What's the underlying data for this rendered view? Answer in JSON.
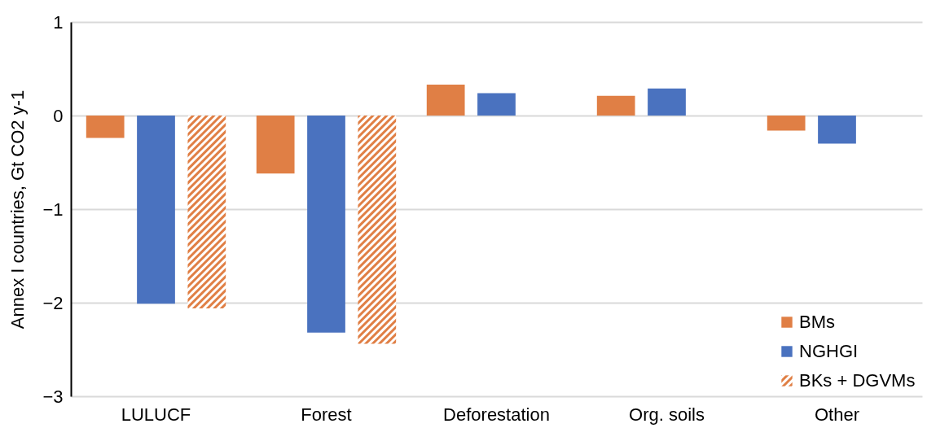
{
  "chart_data": {
    "type": "bar",
    "ylabel": "Annex I countries, Gt CO2 y-1",
    "categories": [
      "LULUCF",
      "Forest",
      "Deforestation",
      "Org. soils",
      "Other"
    ],
    "series": [
      {
        "name": "BMs",
        "color": "#e07f45",
        "values": [
          -0.24,
          -0.62,
          0.33,
          0.21,
          -0.16
        ]
      },
      {
        "name": "NGHGI",
        "color": "#4a72bf",
        "values": [
          -2.01,
          -2.32,
          0.24,
          0.29,
          -0.3
        ]
      },
      {
        "name": "BKs + DGVMs",
        "color": "#e07f45",
        "values": [
          -2.06,
          -2.44,
          null,
          null,
          null
        ]
      }
    ],
    "ylim": [
      -3,
      1
    ],
    "yticks": [
      -3,
      -2,
      -1,
      0,
      1
    ],
    "grid": "y",
    "legend": "bottom right"
  }
}
